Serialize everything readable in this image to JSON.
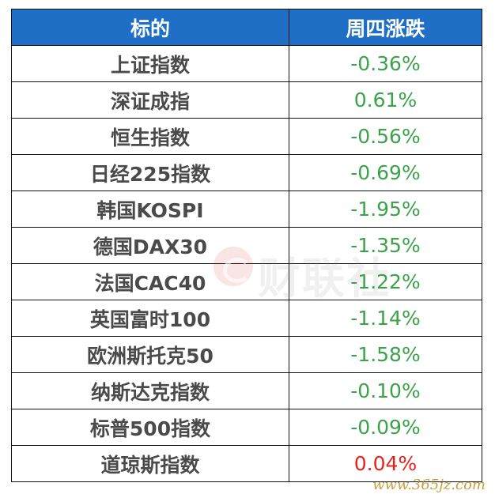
{
  "table": {
    "headers": [
      "标的",
      "周四涨跌"
    ],
    "rows": [
      {
        "name": "上证指数",
        "value": "-0.36%"
      },
      {
        "name": "深证成指",
        "value": "0.61%"
      },
      {
        "name": "恒生指数",
        "value": "-0.56%"
      },
      {
        "name": "日经225指数",
        "value": "-0.69%"
      },
      {
        "name": "韩国KOSPI",
        "value": "-1.95%"
      },
      {
        "name": "德国DAX30",
        "value": "-1.35%"
      },
      {
        "name": "法国CAC40",
        "value": "-1.22%"
      },
      {
        "name": "英国富时100",
        "value": "-1.14%"
      },
      {
        "name": "欧洲斯托克50",
        "value": "-1.58%"
      },
      {
        "name": "纳斯达克指数",
        "value": "-0.10%"
      },
      {
        "name": "标普500指数",
        "value": "-0.09%"
      },
      {
        "name": "道琼斯指数",
        "value": "0.04%"
      }
    ]
  },
  "colors": {
    "header_bg": "#1f6fc6",
    "header_text": "#ffffff",
    "green": "#3aa34a",
    "red": "#e8221b",
    "name_text": "#4a4a4a"
  },
  "watermark": {
    "text": "财联社",
    "logo_icon": "cailianshe-logo-icon"
  },
  "site_mark": "www.365jz.com"
}
